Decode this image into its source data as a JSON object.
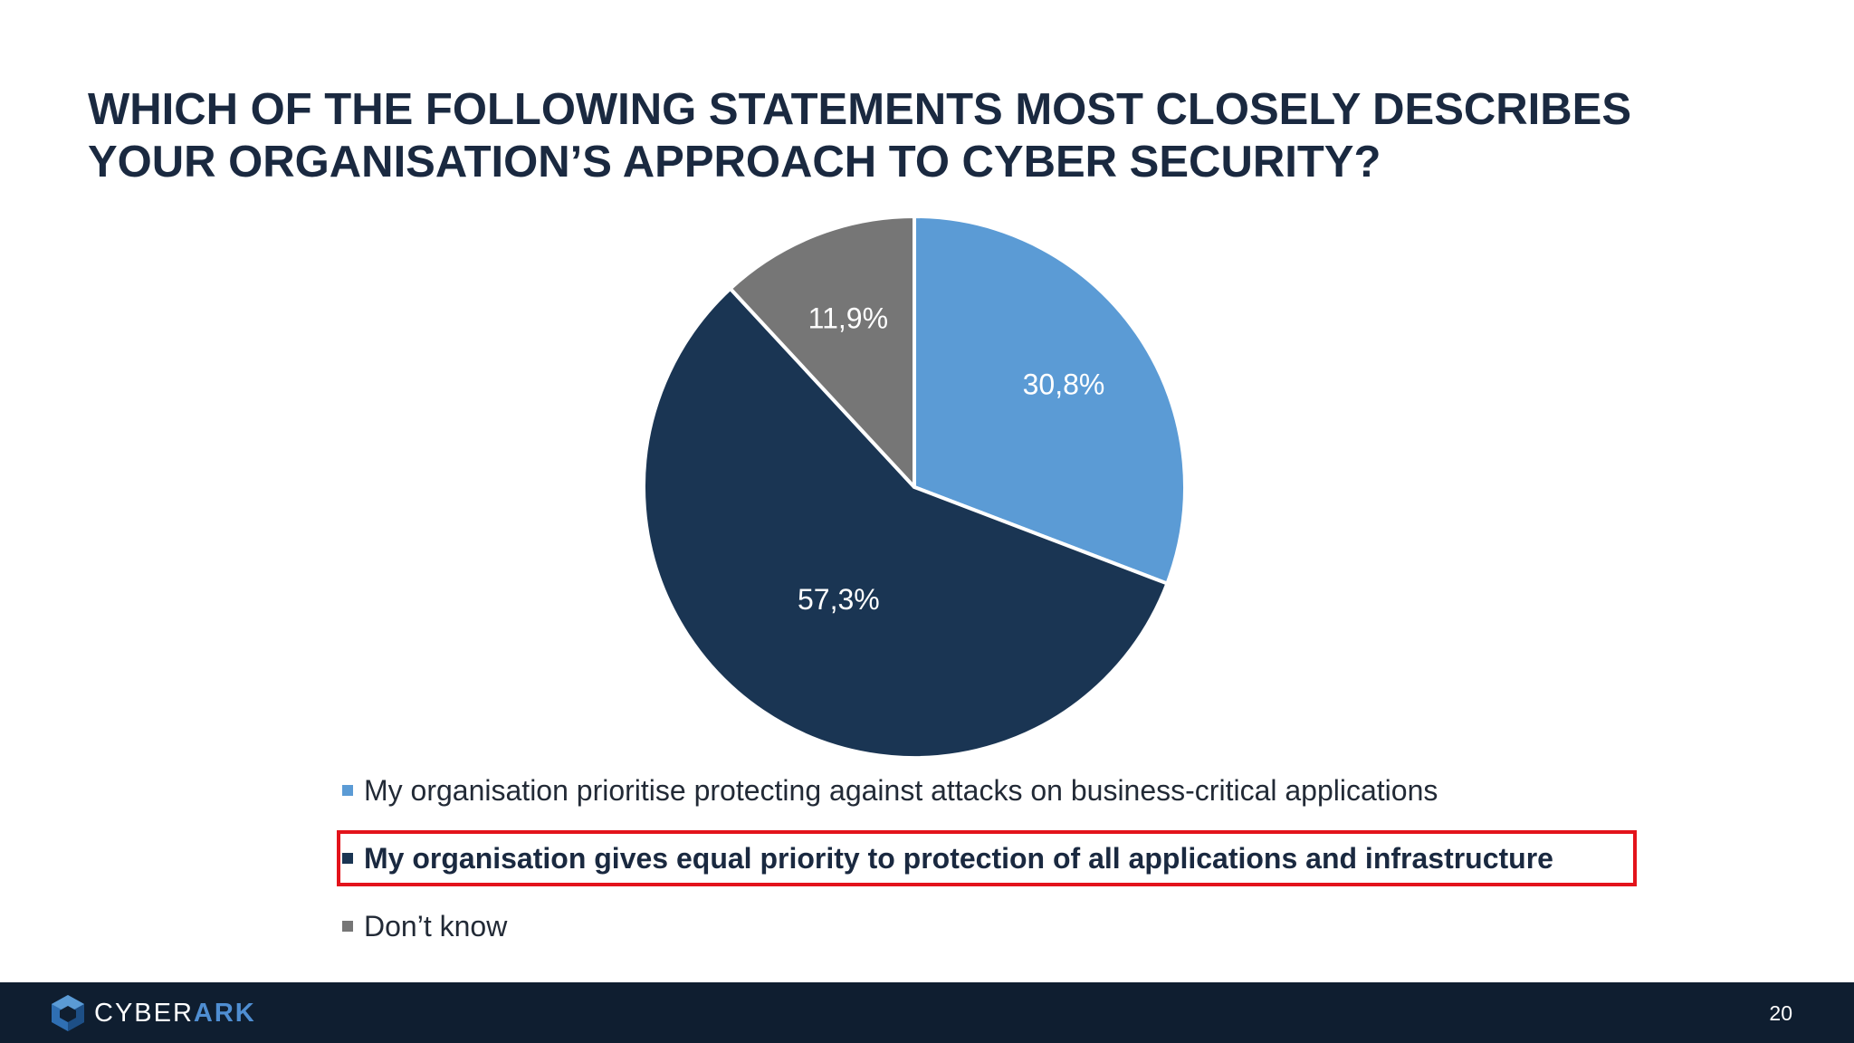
{
  "slide": {
    "title_line1": "WHICH OF THE FOLLOWING STATEMENTS MOST CLOSELY DESCRIBES",
    "title_line2": "YOUR ORGANISATION’S APPROACH TO CYBER SECURITY?",
    "page_number": "20"
  },
  "footer": {
    "logo_text_cyber": "CYBER",
    "logo_text_ark": "ARK"
  },
  "colors": {
    "title": "#1a2940",
    "footer_bg": "#0f1e30",
    "highlight_border": "#e3131b",
    "slice_light_blue": "#5b9bd5",
    "slice_navy": "#1a3553",
    "slice_gray": "#767676"
  },
  "chart_data": {
    "type": "pie",
    "title": "",
    "start_angle_deg": 0,
    "direction": "clockwise",
    "legend_position": "bottom",
    "highlighted_legend_index": 1,
    "slices": [
      {
        "label": "My organisation prioritise protecting against attacks on business-critical applications",
        "value": 30.8,
        "display": "30,8%",
        "color": "#5b9bd5"
      },
      {
        "label": "My organisation gives equal priority to protection of all applications and infrastructure",
        "value": 57.3,
        "display": "57,3%",
        "color": "#1a3553"
      },
      {
        "label": "Don’t know",
        "value": 11.9,
        "display": "11,9%",
        "color": "#767676"
      }
    ]
  }
}
